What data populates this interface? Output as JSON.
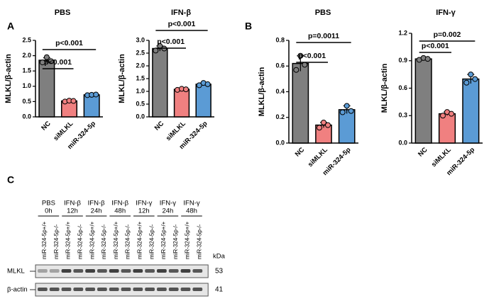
{
  "chart_data": [
    {
      "type": "bar",
      "panel": "A",
      "title": "PBS",
      "y_label": "MLKL/β-actin",
      "categories": [
        "NC",
        "siMLKL",
        "miR-324-5p"
      ],
      "colors": [
        "#7f7f7f",
        "#f08080",
        "#5b9bd5"
      ],
      "values": [
        1.85,
        0.52,
        0.72
      ],
      "errors": [
        0.08,
        0.02,
        0.02
      ],
      "points": [
        [
          1.78,
          1.95,
          1.82
        ],
        [
          0.5,
          0.53,
          0.52
        ],
        [
          0.71,
          0.72,
          0.73
        ]
      ],
      "ylim": [
        0,
        2.5
      ],
      "yticks": [
        {
          "value": 0,
          "label": "0.0"
        },
        0.5,
        {
          "value": 1,
          "label": "1.0"
        },
        1.5,
        {
          "value": 2,
          "label": "2.0"
        },
        2.5
      ],
      "comparisons": [
        {
          "label": "p<0.001",
          "pair": [
            "NC",
            "siMLKL"
          ]
        },
        {
          "label": "p<0.001",
          "pair": [
            "NC",
            "miR-324-5p"
          ]
        }
      ]
    },
    {
      "type": "bar",
      "title": "IFN-β",
      "y_label": "MLKL/β-actin",
      "categories": [
        "NC",
        "siMLKL",
        "miR-324-5p"
      ],
      "colors": [
        "#7f7f7f",
        "#f08080",
        "#5b9bd5"
      ],
      "values": [
        2.68,
        1.08,
        1.28
      ],
      "errors": [
        0.1,
        0.03,
        0.05
      ],
      "points": [
        [
          2.6,
          2.78,
          2.68
        ],
        [
          1.06,
          1.1,
          1.08
        ],
        [
          1.24,
          1.33,
          1.28
        ]
      ],
      "ylim": [
        0,
        3
      ],
      "yticks": [
        {
          "value": 0,
          "label": "0.0"
        },
        0.5,
        {
          "value": 1,
          "label": "1.0"
        },
        1.5,
        {
          "value": 2,
          "label": "2.0"
        },
        2.5,
        {
          "value": 3,
          "label": "3.0"
        }
      ],
      "comparisons": [
        {
          "label": "p<0.001",
          "pair": [
            "NC",
            "siMLKL"
          ]
        },
        {
          "label": "p<0.001",
          "pair": [
            "NC",
            "miR-324-5p"
          ]
        }
      ]
    },
    {
      "type": "bar",
      "panel": "B",
      "title": "PBS",
      "y_label": "MLKL/β-actin",
      "categories": [
        "NC",
        "siMLKL",
        "miR-324-5p"
      ],
      "colors": [
        "#7f7f7f",
        "#f08080",
        "#5b9bd5"
      ],
      "values": [
        0.62,
        0.14,
        0.26
      ],
      "errors": [
        0.06,
        0.02,
        0.03
      ],
      "points": [
        [
          0.57,
          0.68,
          0.61
        ],
        [
          0.12,
          0.16,
          0.14
        ],
        [
          0.24,
          0.29,
          0.25
        ]
      ],
      "ylim": [
        0,
        0.8
      ],
      "yticks": [
        {
          "value": 0,
          "label": "0.0"
        },
        0.2,
        0.4,
        0.6,
        0.8
      ],
      "comparisons": [
        {
          "label": "p<0.001",
          "pair": [
            "NC",
            "siMLKL"
          ]
        },
        {
          "label": "p=0.0011",
          "pair": [
            "NC",
            "miR-324-5p"
          ]
        }
      ]
    },
    {
      "type": "bar",
      "title": "IFN-γ",
      "y_label": "MLKL/β-actin",
      "categories": [
        "NC",
        "siMLKL",
        "miR-324-5p"
      ],
      "colors": [
        "#7f7f7f",
        "#f08080",
        "#5b9bd5"
      ],
      "values": [
        0.92,
        0.32,
        0.7
      ],
      "errors": [
        0.01,
        0.02,
        0.05
      ],
      "points": [
        [
          0.91,
          0.93,
          0.92
        ],
        [
          0.3,
          0.34,
          0.32
        ],
        [
          0.66,
          0.75,
          0.7
        ]
      ],
      "ylim": [
        0,
        1.2
      ],
      "yticks": [
        {
          "value": 0,
          "label": "0.0"
        },
        0.3,
        0.6,
        0.9,
        1.2
      ],
      "comparisons": [
        {
          "label": "p<0.001",
          "pair": [
            "NC",
            "siMLKL"
          ]
        },
        {
          "label": "p=0.002",
          "pair": [
            "NC",
            "miR-324-5p"
          ]
        }
      ]
    }
  ],
  "blot": {
    "panel": "C",
    "groups": [
      {
        "treatment": "PBS",
        "time": "0h"
      },
      {
        "treatment": "IFN-β",
        "time": "12h"
      },
      {
        "treatment": "IFN-β",
        "time": "24h"
      },
      {
        "treatment": "IFN-β",
        "time": "48h"
      },
      {
        "treatment": "IFN-γ",
        "time": "12h"
      },
      {
        "treatment": "IFN-γ",
        "time": "24h"
      },
      {
        "treatment": "IFN-γ",
        "time": "48h"
      }
    ],
    "lanes": [
      "miR-324-5p+/+",
      "miR-324-5p-/-",
      "miR-324-5p+/+",
      "miR-324-5p-/-",
      "miR-324-5p+/+",
      "miR-324-5p-/-",
      "miR-324-5p+/+",
      "miR-324-5p-/-",
      "miR-324-5p+/+",
      "miR-324-5p-/-",
      "miR-324-5p+/+",
      "miR-324-5p-/-",
      "miR-324-5p+/+",
      "miR-324-5p-/-"
    ],
    "unit": "kDa",
    "rows": [
      {
        "label": "MLKL",
        "size": "53"
      },
      {
        "label": "β-actin",
        "size": "41"
      }
    ]
  }
}
